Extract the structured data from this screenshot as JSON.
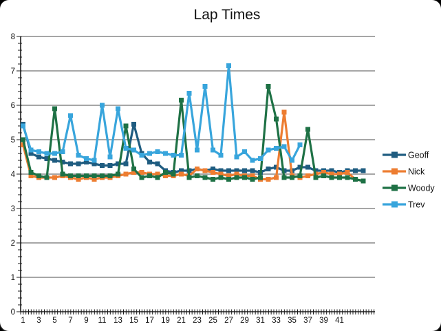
{
  "window": {
    "background_color": "#000000",
    "card_color": "#ffffff"
  },
  "chart_data": {
    "type": "line",
    "title": "Lap Times",
    "xlabel": "",
    "ylabel": "",
    "ylim": [
      0,
      8
    ],
    "y_ticks": [
      0,
      1,
      2,
      3,
      4,
      5,
      6,
      7,
      8
    ],
    "x_tick_labels": [
      "1",
      "3",
      "5",
      "7",
      "9",
      "11",
      "13",
      "15",
      "17",
      "19",
      "21",
      "23",
      "25",
      "27",
      "29",
      "31",
      "33",
      "35",
      "37",
      "39",
      "41"
    ],
    "x_axis_max": 45,
    "grid": "horizontal major gridlines on",
    "grid_color": "#4d4d4d",
    "axis_color": "#1a1a1a",
    "legend_position": "right",
    "series": [
      {
        "name": "Geoff",
        "color": "#1f5c80",
        "marker": "square",
        "x_start": 1,
        "values": [
          5.45,
          4.6,
          4.5,
          4.45,
          4.4,
          4.35,
          4.3,
          4.3,
          4.35,
          4.3,
          4.25,
          4.25,
          4.3,
          4.3,
          5.45,
          4.6,
          4.35,
          4.3,
          4.1,
          4.05,
          4.1,
          4.1,
          4.15,
          4.1,
          4.15,
          4.1,
          4.1,
          4.1,
          4.1,
          4.1,
          4.05,
          4.15,
          4.2,
          4.1,
          4.1,
          4.2,
          4.2,
          4.1,
          4.1,
          4.1,
          4.05,
          4.1,
          4.1,
          4.1
        ]
      },
      {
        "name": "Nick",
        "color": "#ed7d31",
        "marker": "square",
        "x_start": 1,
        "values": [
          4.85,
          3.95,
          3.9,
          3.9,
          3.9,
          3.95,
          3.9,
          3.85,
          3.9,
          3.85,
          3.9,
          3.9,
          3.95,
          4.0,
          4.05,
          4.05,
          4.0,
          4.0,
          3.95,
          3.95,
          4.0,
          3.95,
          4.15,
          4.1,
          4.05,
          4.0,
          3.95,
          4.0,
          3.95,
          3.95,
          3.85,
          3.85,
          3.9,
          5.8,
          3.95,
          3.9,
          3.95,
          4.0,
          4.05,
          4.0,
          4.0,
          4.05,
          3.85,
          3.8
        ]
      },
      {
        "name": "Woody",
        "color": "#1e7145",
        "marker": "square",
        "x_start": 1,
        "values": [
          5.0,
          4.05,
          3.95,
          3.9,
          5.9,
          4.0,
          3.95,
          3.95,
          3.95,
          3.95,
          3.95,
          3.95,
          4.0,
          5.4,
          4.15,
          3.9,
          3.95,
          3.9,
          4.05,
          4.0,
          6.15,
          3.9,
          3.95,
          3.9,
          3.85,
          3.9,
          3.85,
          3.9,
          3.9,
          3.85,
          3.9,
          6.55,
          5.6,
          3.9,
          3.9,
          3.95,
          5.3,
          3.9,
          3.95,
          3.9,
          3.9,
          3.9,
          3.85,
          3.8
        ]
      },
      {
        "name": "Trev",
        "color": "#38a5dc",
        "marker": "square",
        "x_start": 1,
        "values": [
          5.4,
          4.7,
          4.65,
          4.6,
          4.6,
          4.65,
          5.7,
          4.55,
          4.45,
          4.4,
          6.0,
          4.5,
          5.9,
          4.75,
          4.7,
          4.55,
          4.6,
          4.65,
          4.6,
          4.55,
          4.55,
          6.35,
          4.7,
          6.55,
          4.7,
          4.55,
          7.15,
          4.5,
          4.65,
          4.4,
          4.45,
          4.7,
          4.75,
          4.8,
          4.4,
          4.85
        ]
      }
    ]
  }
}
